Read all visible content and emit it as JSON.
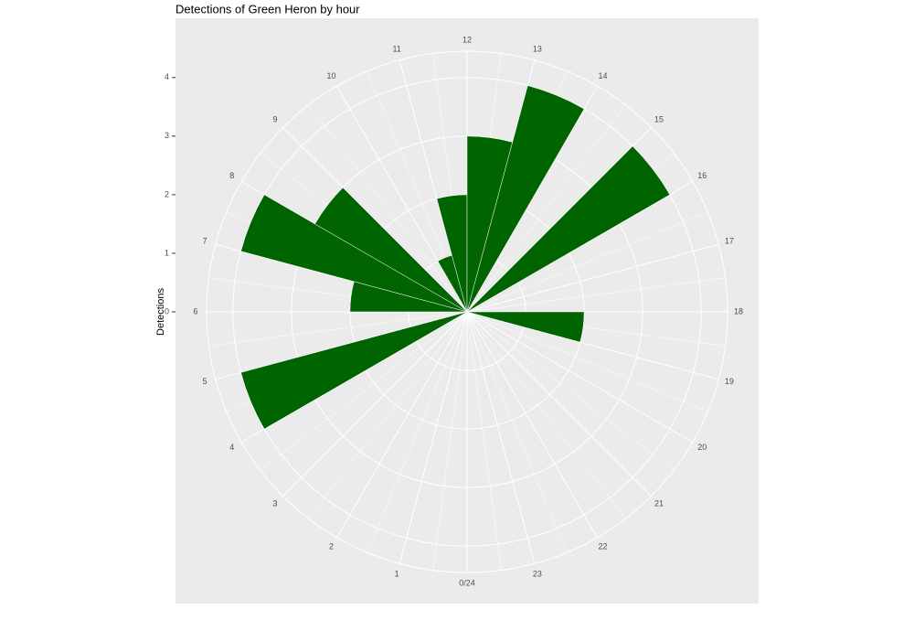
{
  "chart_data": {
    "type": "polar-bar",
    "title": "Detections of Green Heron by hour",
    "ylabel": "Detections",
    "x": [
      0,
      1,
      2,
      3,
      4,
      5,
      6,
      7,
      8,
      9,
      10,
      11,
      12,
      13,
      14,
      15,
      16,
      17,
      18,
      19,
      20,
      21,
      22,
      23
    ],
    "values": [
      0,
      0,
      0,
      0,
      4,
      0,
      2,
      4,
      3,
      0,
      1,
      2,
      3,
      4,
      0,
      4,
      0,
      0,
      2,
      0,
      0,
      0,
      0,
      0
    ],
    "color": "#006400",
    "xlim": [
      0,
      24
    ],
    "xticks": [
      {
        "value": 0,
        "label": "0/24"
      },
      1,
      2,
      3,
      4,
      5,
      6,
      7,
      8,
      9,
      10,
      11,
      12,
      13,
      14,
      15,
      16,
      17,
      18,
      19,
      20,
      21,
      22,
      23
    ],
    "ylim": [
      0,
      4.45
    ],
    "yticks": [
      0,
      1,
      2,
      3,
      4
    ],
    "grid": true
  }
}
